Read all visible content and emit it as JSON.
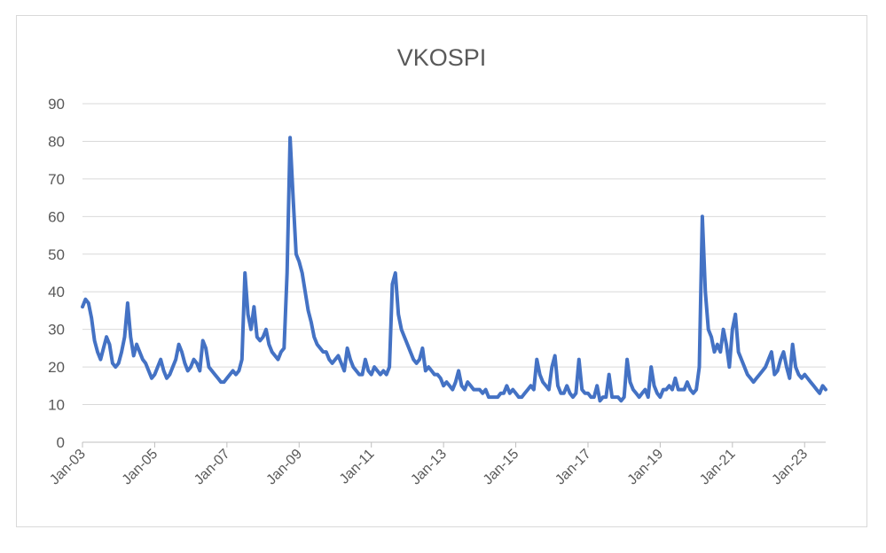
{
  "chart_data": {
    "type": "line",
    "title": "VKOSPI",
    "xlabel": "",
    "ylabel": "",
    "ylim": [
      0,
      90
    ],
    "yticks": [
      "0",
      "10",
      "20",
      "30",
      "40",
      "50",
      "60",
      "70",
      "80",
      "90"
    ],
    "xlim": [
      "2003-01",
      "2023-08"
    ],
    "xticks": [
      {
        "date": "2003-01",
        "label": "Jan-03"
      },
      {
        "date": "2005-01",
        "label": "Jan-05"
      },
      {
        "date": "2007-01",
        "label": "Jan-07"
      },
      {
        "date": "2009-01",
        "label": "Jan-09"
      },
      {
        "date": "2011-01",
        "label": "Jan-11"
      },
      {
        "date": "2013-01",
        "label": "Jan-13"
      },
      {
        "date": "2015-01",
        "label": "Jan-15"
      },
      {
        "date": "2017-01",
        "label": "Jan-17"
      },
      {
        "date": "2019-01",
        "label": "Jan-19"
      },
      {
        "date": "2021-01",
        "label": "Jan-21"
      },
      {
        "date": "2023-01",
        "label": "Jan-23"
      }
    ],
    "grid": true,
    "legend": "none",
    "series_color": "#4472c4",
    "series": [
      {
        "x": [
          "2003-01",
          "2003-02",
          "2003-03",
          "2003-04",
          "2003-05",
          "2003-06",
          "2003-07",
          "2003-08",
          "2003-09",
          "2003-10",
          "2003-11",
          "2003-12",
          "2004-01",
          "2004-02",
          "2004-03",
          "2004-04",
          "2004-05",
          "2004-06",
          "2004-07",
          "2004-08",
          "2004-09",
          "2004-10",
          "2004-11",
          "2004-12",
          "2005-01",
          "2005-02",
          "2005-03",
          "2005-04",
          "2005-05",
          "2005-06",
          "2005-07",
          "2005-08",
          "2005-09",
          "2005-10",
          "2005-11",
          "2005-12",
          "2006-01",
          "2006-02",
          "2006-03",
          "2006-04",
          "2006-05",
          "2006-06",
          "2006-07",
          "2006-08",
          "2006-09",
          "2006-10",
          "2006-11",
          "2006-12",
          "2007-01",
          "2007-02",
          "2007-03",
          "2007-04",
          "2007-05",
          "2007-06",
          "2007-07",
          "2007-08",
          "2007-09",
          "2007-10",
          "2007-11",
          "2007-12",
          "2008-01",
          "2008-02",
          "2008-03",
          "2008-04",
          "2008-05",
          "2008-06",
          "2008-07",
          "2008-08",
          "2008-09",
          "2008-10",
          "2008-11",
          "2008-12",
          "2009-01",
          "2009-02",
          "2009-03",
          "2009-04",
          "2009-05",
          "2009-06",
          "2009-07",
          "2009-08",
          "2009-09",
          "2009-10",
          "2009-11",
          "2009-12",
          "2010-01",
          "2010-02",
          "2010-03",
          "2010-04",
          "2010-05",
          "2010-06",
          "2010-07",
          "2010-08",
          "2010-09",
          "2010-10",
          "2010-11",
          "2010-12",
          "2011-01",
          "2011-02",
          "2011-03",
          "2011-04",
          "2011-05",
          "2011-06",
          "2011-07",
          "2011-08",
          "2011-09",
          "2011-10",
          "2011-11",
          "2011-12",
          "2012-01",
          "2012-02",
          "2012-03",
          "2012-04",
          "2012-05",
          "2012-06",
          "2012-07",
          "2012-08",
          "2012-09",
          "2012-10",
          "2012-11",
          "2012-12",
          "2013-01",
          "2013-02",
          "2013-03",
          "2013-04",
          "2013-05",
          "2013-06",
          "2013-07",
          "2013-08",
          "2013-09",
          "2013-10",
          "2013-11",
          "2013-12",
          "2014-01",
          "2014-02",
          "2014-03",
          "2014-04",
          "2014-05",
          "2014-06",
          "2014-07",
          "2014-08",
          "2014-09",
          "2014-10",
          "2014-11",
          "2014-12",
          "2015-01",
          "2015-02",
          "2015-03",
          "2015-04",
          "2015-05",
          "2015-06",
          "2015-07",
          "2015-08",
          "2015-09",
          "2015-10",
          "2015-11",
          "2015-12",
          "2016-01",
          "2016-02",
          "2016-03",
          "2016-04",
          "2016-05",
          "2016-06",
          "2016-07",
          "2016-08",
          "2016-09",
          "2016-10",
          "2016-11",
          "2016-12",
          "2017-01",
          "2017-02",
          "2017-03",
          "2017-04",
          "2017-05",
          "2017-06",
          "2017-07",
          "2017-08",
          "2017-09",
          "2017-10",
          "2017-11",
          "2017-12",
          "2018-01",
          "2018-02",
          "2018-03",
          "2018-04",
          "2018-05",
          "2018-06",
          "2018-07",
          "2018-08",
          "2018-09",
          "2018-10",
          "2018-11",
          "2018-12",
          "2019-01",
          "2019-02",
          "2019-03",
          "2019-04",
          "2019-05",
          "2019-06",
          "2019-07",
          "2019-08",
          "2019-09",
          "2019-10",
          "2019-11",
          "2019-12",
          "2020-01",
          "2020-02",
          "2020-03",
          "2020-04",
          "2020-05",
          "2020-06",
          "2020-07",
          "2020-08",
          "2020-09",
          "2020-10",
          "2020-11",
          "2020-12",
          "2021-01",
          "2021-02",
          "2021-03",
          "2021-04",
          "2021-05",
          "2021-06",
          "2021-07",
          "2021-08",
          "2021-09",
          "2021-10",
          "2021-11",
          "2021-12",
          "2022-01",
          "2022-02",
          "2022-03",
          "2022-04",
          "2022-05",
          "2022-06",
          "2022-07",
          "2022-08",
          "2022-09",
          "2022-10",
          "2022-11",
          "2022-12",
          "2023-01",
          "2023-02",
          "2023-03",
          "2023-04",
          "2023-05",
          "2023-06",
          "2023-07",
          "2023-08"
        ],
        "y": [
          36,
          38,
          37,
          33,
          27,
          24,
          22,
          25,
          28,
          26,
          21,
          20,
          21,
          24,
          28,
          37,
          28,
          23,
          26,
          24,
          22,
          21,
          19,
          17,
          18,
          20,
          22,
          19,
          17,
          18,
          20,
          22,
          26,
          24,
          21,
          19,
          20,
          22,
          21,
          19,
          27,
          25,
          20,
          19,
          18,
          17,
          16,
          16,
          17,
          18,
          19,
          18,
          19,
          22,
          45,
          34,
          30,
          36,
          28,
          27,
          28,
          30,
          26,
          24,
          23,
          22,
          24,
          25,
          45,
          81,
          65,
          50,
          48,
          45,
          40,
          35,
          32,
          28,
          26,
          25,
          24,
          24,
          22,
          21,
          22,
          23,
          21,
          19,
          25,
          22,
          20,
          19,
          18,
          18,
          22,
          19,
          18,
          20,
          19,
          18,
          19,
          18,
          20,
          42,
          45,
          34,
          30,
          28,
          26,
          24,
          22,
          21,
          22,
          25,
          19,
          20,
          19,
          18,
          18,
          17,
          15,
          16,
          15,
          14,
          16,
          19,
          15,
          14,
          16,
          15,
          14,
          14,
          14,
          13,
          14,
          12,
          12,
          12,
          12,
          13,
          13,
          15,
          13,
          14,
          13,
          12,
          12,
          13,
          14,
          15,
          14,
          22,
          18,
          16,
          15,
          14,
          20,
          23,
          15,
          13,
          13,
          15,
          13,
          12,
          13,
          22,
          14,
          13,
          13,
          12,
          12,
          15,
          11,
          12,
          12,
          18,
          12,
          12,
          12,
          11,
          12,
          22,
          16,
          14,
          13,
          12,
          13,
          14,
          12,
          20,
          15,
          13,
          12,
          14,
          14,
          15,
          14,
          17,
          14,
          14,
          14,
          16,
          14,
          13,
          14,
          20,
          60,
          40,
          30,
          28,
          24,
          26,
          24,
          30,
          26,
          20,
          30,
          34,
          24,
          22,
          20,
          18,
          17,
          16,
          17,
          18,
          19,
          20,
          22,
          24,
          18,
          19,
          22,
          24,
          20,
          17,
          26,
          20,
          18,
          17,
          18,
          17,
          16,
          15,
          14,
          13,
          15,
          14
        ]
      }
    ]
  }
}
